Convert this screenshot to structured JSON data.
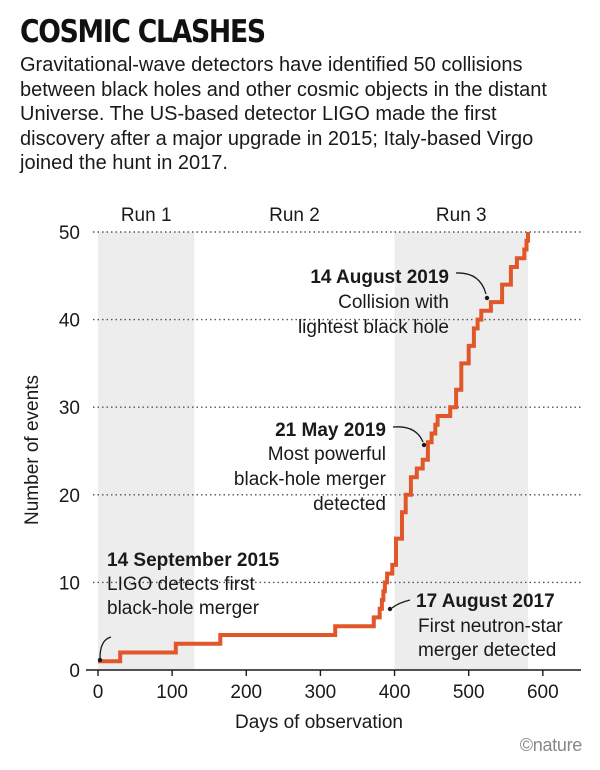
{
  "title": "COSMIC CLASHES",
  "subtitle": "Gravitational-wave detectors have identified 50 collisions between black holes and other cosmic objects in the distant Universe. The US-based detector LIGO made the first discovery after a major upgrade in 2015; Italy-based Virgo joined the hunt in 2017.",
  "credit": "©nature",
  "colors": {
    "line": "#e2572a",
    "band": "#ededed",
    "grid": "#555555",
    "text": "#1a1a1a"
  },
  "chart_data": {
    "type": "line",
    "step": true,
    "xlabel": "Days of observation",
    "ylabel": "Number of events",
    "xlim": [
      0,
      650
    ],
    "ylim": [
      0,
      50
    ],
    "xticks": [
      0,
      100,
      200,
      300,
      400,
      500,
      600
    ],
    "yticks": [
      0,
      10,
      20,
      30,
      40,
      50
    ],
    "grid": "horizontal dotted",
    "runs": [
      {
        "name": "Run 1",
        "start": 0,
        "end": 130
      },
      {
        "name": "Run 2",
        "start": 130,
        "end": 400
      },
      {
        "name": "Run 3",
        "start": 400,
        "end": 580
      }
    ],
    "series": [
      {
        "name": "Cumulative events",
        "points": [
          [
            0,
            1
          ],
          [
            30,
            1
          ],
          [
            30,
            2
          ],
          [
            105,
            2
          ],
          [
            105,
            3
          ],
          [
            165,
            3
          ],
          [
            165,
            4
          ],
          [
            320,
            4
          ],
          [
            320,
            5
          ],
          [
            372,
            5
          ],
          [
            372,
            6
          ],
          [
            380,
            6
          ],
          [
            380,
            7
          ],
          [
            383,
            7
          ],
          [
            383,
            8
          ],
          [
            385,
            8
          ],
          [
            385,
            9
          ],
          [
            387,
            9
          ],
          [
            387,
            10
          ],
          [
            390,
            10
          ],
          [
            390,
            11
          ],
          [
            397,
            11
          ],
          [
            397,
            12
          ],
          [
            402,
            12
          ],
          [
            402,
            15
          ],
          [
            410,
            15
          ],
          [
            410,
            18
          ],
          [
            415,
            18
          ],
          [
            415,
            20
          ],
          [
            422,
            20
          ],
          [
            422,
            22
          ],
          [
            430,
            22
          ],
          [
            430,
            23
          ],
          [
            438,
            23
          ],
          [
            438,
            24
          ],
          [
            445,
            24
          ],
          [
            445,
            26
          ],
          [
            450,
            26
          ],
          [
            450,
            27
          ],
          [
            455,
            27
          ],
          [
            455,
            28
          ],
          [
            458,
            28
          ],
          [
            458,
            29
          ],
          [
            475,
            29
          ],
          [
            475,
            30
          ],
          [
            483,
            30
          ],
          [
            483,
            32
          ],
          [
            490,
            32
          ],
          [
            490,
            35
          ],
          [
            500,
            35
          ],
          [
            500,
            37
          ],
          [
            507,
            37
          ],
          [
            507,
            39
          ],
          [
            512,
            39
          ],
          [
            512,
            40
          ],
          [
            517,
            40
          ],
          [
            517,
            41
          ],
          [
            530,
            41
          ],
          [
            530,
            42
          ],
          [
            545,
            42
          ],
          [
            545,
            44
          ],
          [
            557,
            44
          ],
          [
            557,
            46
          ],
          [
            565,
            46
          ],
          [
            565,
            47
          ],
          [
            575,
            47
          ],
          [
            575,
            48
          ],
          [
            578,
            48
          ],
          [
            578,
            49
          ],
          [
            580,
            49
          ],
          [
            580,
            50
          ]
        ]
      }
    ],
    "annotations": [
      {
        "date": "14 September 2015",
        "lines": [
          "LIGO detects first",
          "black-hole merger"
        ],
        "x": 0,
        "y": 1
      },
      {
        "date": "17 August 2017",
        "lines": [
          "First neutron-star",
          "merger detected"
        ],
        "x": 383,
        "y": 8
      },
      {
        "date": "21 May 2019",
        "lines": [
          "Most powerful",
          "black-hole merger",
          "detected"
        ],
        "x": 445,
        "y": 25
      },
      {
        "date": "14 August 2019",
        "lines": [
          "Collision with",
          "lightest black hole"
        ],
        "x": 517,
        "y": 40
      }
    ]
  }
}
